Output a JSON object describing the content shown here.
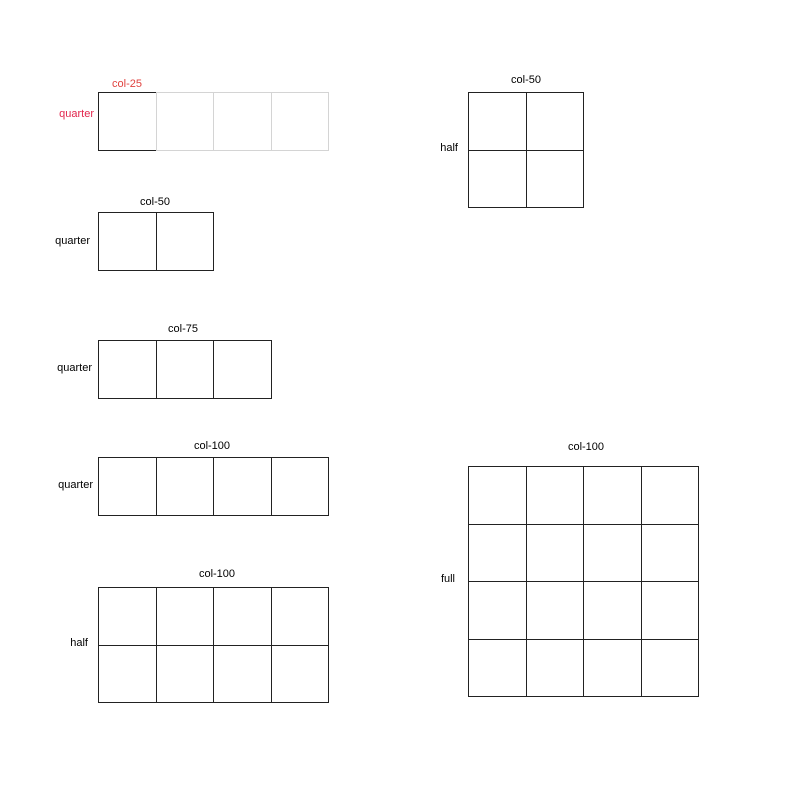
{
  "colors": {
    "highlight": "#e2264d",
    "highlight_col": "#e0433f",
    "line": "#222222",
    "ghost": "#d4d4d4"
  },
  "diagrams": [
    {
      "id": "d1",
      "col_label": "col-25",
      "row_label": "quarter",
      "highlighted": true,
      "cols_filled": 1,
      "cols_total": 4,
      "rows": 1
    },
    {
      "id": "d2",
      "col_label": "col-50",
      "row_label": "quarter",
      "highlighted": false,
      "cols_filled": 2,
      "cols_total": 2,
      "rows": 1
    },
    {
      "id": "d3",
      "col_label": "col-75",
      "row_label": "quarter",
      "highlighted": false,
      "cols_filled": 3,
      "cols_total": 3,
      "rows": 1
    },
    {
      "id": "d4",
      "col_label": "col-100",
      "row_label": "quarter",
      "highlighted": false,
      "cols_filled": 4,
      "cols_total": 4,
      "rows": 1
    },
    {
      "id": "d5",
      "col_label": "col-100",
      "row_label": "half",
      "highlighted": false,
      "cols_filled": 4,
      "cols_total": 4,
      "rows": 2
    },
    {
      "id": "d6",
      "col_label": "col-50",
      "row_label": "half",
      "highlighted": false,
      "cols_filled": 2,
      "cols_total": 2,
      "rows": 2
    },
    {
      "id": "d7",
      "col_label": "col-100",
      "row_label": "full",
      "highlighted": false,
      "cols_filled": 4,
      "cols_total": 4,
      "rows": 4
    }
  ]
}
